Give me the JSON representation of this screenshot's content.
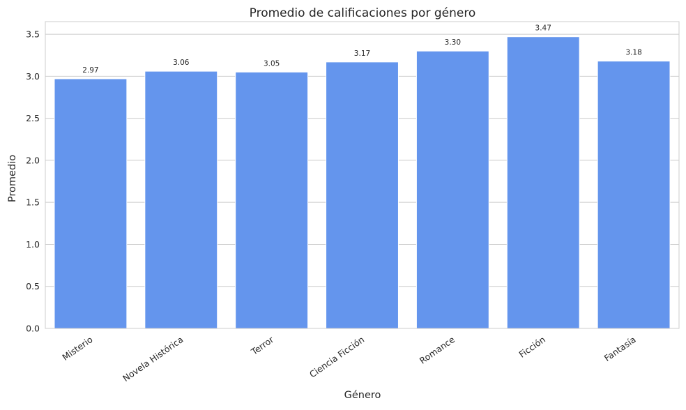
{
  "chart_data": {
    "type": "bar",
    "title": "Promedio de calificaciones por género",
    "xlabel": "Género",
    "ylabel": "Promedio",
    "categories": [
      "Misterio",
      "Novela Histórica",
      "Terror",
      "Ciencia Ficción",
      "Romance",
      "Ficción",
      "Fantasía"
    ],
    "values": [
      2.97,
      3.06,
      3.05,
      3.17,
      3.3,
      3.47,
      3.18
    ],
    "data_labels": [
      "2.97",
      "3.06",
      "3.05",
      "3.17",
      "3.30",
      "3.47",
      "3.18"
    ],
    "ylim": [
      0,
      3.65
    ],
    "yticks": [
      0.0,
      0.5,
      1.0,
      1.5,
      2.0,
      2.5,
      3.0,
      3.5
    ],
    "ytick_labels": [
      "0.0",
      "0.5",
      "1.0",
      "1.5",
      "2.0",
      "2.5",
      "3.0",
      "3.5"
    ],
    "grid": "horizontal",
    "legend": "none",
    "colors": {
      "bar": "#6495ED",
      "grid": "#cccccc",
      "frame": "#cccccc",
      "text": "#262626"
    }
  }
}
